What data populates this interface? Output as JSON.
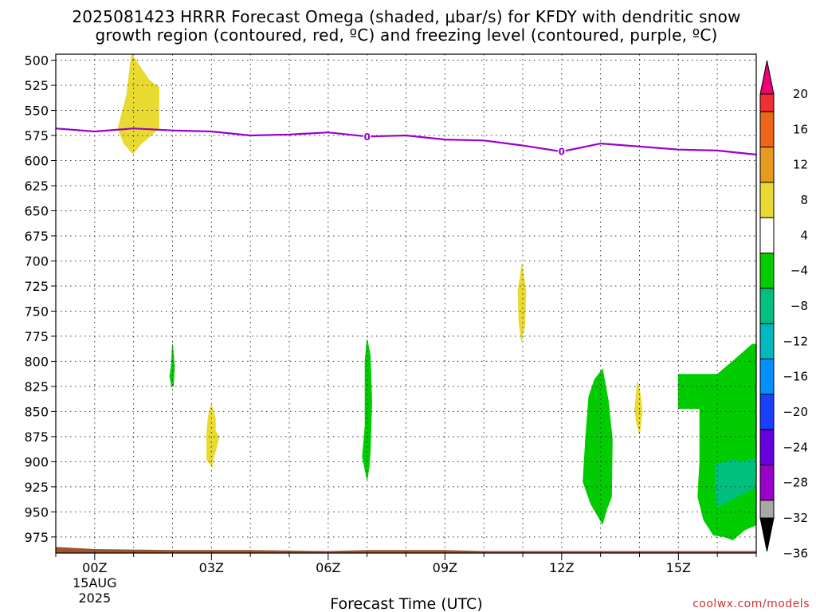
{
  "title": {
    "line1": "2025081423 HRRR Forecast Omega (shaded, μbar/s) for KFDY with dendritic snow",
    "line2": "growth region (contoured, red, ºC) and freezing level (contoured, purple, ºC)"
  },
  "credit": "coolwx.com/models",
  "chart_data": {
    "type": "heatmap",
    "xlabel": "Forecast Time (UTC)",
    "x_range_hours": [
      -1,
      17
    ],
    "x_ticks": [
      {
        "hour": 0,
        "label": "00Z",
        "sub1": "15AUG",
        "sub2": "2025"
      },
      {
        "hour": 3,
        "label": "03Z"
      },
      {
        "hour": 6,
        "label": "06Z"
      },
      {
        "hour": 9,
        "label": "09Z"
      },
      {
        "hour": 12,
        "label": "12Z"
      },
      {
        "hour": 15,
        "label": "15Z"
      }
    ],
    "y_range_mb": [
      991,
      494
    ],
    "y_ticks": [
      500,
      525,
      550,
      575,
      600,
      625,
      650,
      675,
      700,
      725,
      750,
      775,
      800,
      825,
      850,
      875,
      900,
      925,
      950,
      975
    ],
    "grid": true,
    "colorbar": {
      "labels": [
        "20",
        "16",
        "12",
        "8",
        "4",
        "−4",
        "−8",
        "−12",
        "−16",
        "−20",
        "−24",
        "−28",
        "−32",
        "−36"
      ],
      "colors": [
        "#ee0077",
        "#f03030",
        "#ee6618",
        "#e89a20",
        "#e8da30",
        "#ffffff",
        "#00cc00",
        "#00c080",
        "#00b8c0",
        "#0090ff",
        "#1a40ff",
        "#6600dd",
        "#9a00c8",
        "#a8a8a8",
        "#000000"
      ]
    },
    "omega_regions": [
      {
        "color": "#e8da30",
        "points": [
          [
            0.6,
            568
          ],
          [
            0.82,
            535
          ],
          [
            0.95,
            494
          ],
          [
            1.4,
            520
          ],
          [
            1.65,
            527
          ],
          [
            1.65,
            568
          ],
          [
            1.2,
            583
          ],
          [
            0.98,
            593
          ],
          [
            0.75,
            583
          ]
        ]
      },
      {
        "color": "#00cc00",
        "points": [
          [
            1.97,
            805
          ],
          [
            2.0,
            783
          ],
          [
            2.05,
            805
          ],
          [
            2.02,
            825
          ],
          [
            1.98,
            825
          ],
          [
            1.93,
            815
          ]
        ]
      },
      {
        "color": "#e8da30",
        "points": [
          [
            2.92,
            855
          ],
          [
            3.0,
            843
          ],
          [
            3.1,
            857
          ],
          [
            3.1,
            870
          ],
          [
            3.2,
            875
          ],
          [
            3.05,
            897
          ],
          [
            3.02,
            905
          ],
          [
            2.88,
            898
          ],
          [
            2.88,
            873
          ]
        ]
      },
      {
        "color": "#00cc00",
        "points": [
          [
            6.95,
            800
          ],
          [
            7.0,
            778
          ],
          [
            7.08,
            795
          ],
          [
            7.12,
            840
          ],
          [
            7.08,
            890
          ],
          [
            7.05,
            905
          ],
          [
            7.0,
            918
          ],
          [
            6.95,
            908
          ],
          [
            6.88,
            895
          ],
          [
            6.95,
            865
          ]
        ]
      },
      {
        "color": "#e8da30",
        "points": [
          [
            10.88,
            730
          ],
          [
            10.98,
            703
          ],
          [
            11.08,
            730
          ],
          [
            11.05,
            765
          ],
          [
            10.97,
            780
          ],
          [
            10.9,
            760
          ]
        ]
      },
      {
        "color": "#00cc00",
        "points": [
          [
            12.7,
            835
          ],
          [
            12.85,
            818
          ],
          [
            13.05,
            808
          ],
          [
            13.2,
            840
          ],
          [
            13.3,
            878
          ],
          [
            13.28,
            935
          ],
          [
            13.15,
            948
          ],
          [
            13.05,
            962
          ],
          [
            12.75,
            942
          ],
          [
            12.55,
            920
          ],
          [
            12.62,
            875
          ]
        ]
      },
      {
        "color": "#e8da30",
        "points": [
          [
            13.88,
            848
          ],
          [
            13.95,
            820
          ],
          [
            14.03,
            835
          ],
          [
            14.07,
            850
          ],
          [
            14.0,
            873
          ],
          [
            13.92,
            860
          ]
        ]
      },
      {
        "color": "#00cc00",
        "points": [
          [
            15.0,
            813
          ],
          [
            16.0,
            813
          ],
          [
            16.4,
            800
          ],
          [
            16.9,
            783
          ],
          [
            17.0,
            783
          ],
          [
            17.0,
            963
          ],
          [
            16.7,
            968
          ],
          [
            16.4,
            978
          ],
          [
            16.2,
            975
          ],
          [
            15.9,
            973
          ],
          [
            15.65,
            958
          ],
          [
            15.5,
            935
          ],
          [
            15.55,
            900
          ],
          [
            15.55,
            847
          ],
          [
            15.0,
            847
          ]
        ]
      },
      {
        "color": "#00c080",
        "points": [
          [
            15.95,
            903
          ],
          [
            16.4,
            898
          ],
          [
            16.6,
            900
          ],
          [
            17.0,
            897
          ],
          [
            17.0,
            925
          ],
          [
            16.5,
            935
          ],
          [
            16.0,
            945
          ],
          [
            15.95,
            925
          ]
        ]
      }
    ],
    "freezing_level": {
      "label": "0",
      "label_hours": [
        7.0,
        12.0
      ],
      "points": [
        [
          -1,
          568
        ],
        [
          0,
          571
        ],
        [
          1,
          568
        ],
        [
          2,
          570
        ],
        [
          3,
          571
        ],
        [
          4,
          575
        ],
        [
          5,
          574
        ],
        [
          6,
          572
        ],
        [
          7,
          576
        ],
        [
          8,
          575
        ],
        [
          9,
          579
        ],
        [
          10,
          580
        ],
        [
          11,
          585
        ],
        [
          12,
          591
        ],
        [
          13,
          583
        ],
        [
          14,
          586
        ],
        [
          15,
          589
        ],
        [
          16,
          590
        ],
        [
          17,
          594
        ]
      ]
    },
    "terrain": {
      "color": "#a0522d",
      "points": [
        [
          -1,
          985
        ],
        [
          0,
          987
        ],
        [
          2,
          988
        ],
        [
          4,
          988
        ],
        [
          6,
          989
        ],
        [
          7,
          988
        ],
        [
          9,
          988
        ],
        [
          10,
          989
        ],
        [
          13,
          989
        ],
        [
          15,
          989
        ],
        [
          17,
          989
        ]
      ]
    }
  }
}
